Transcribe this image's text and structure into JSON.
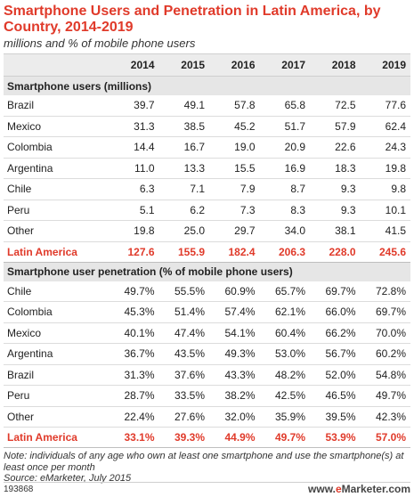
{
  "chart_data": {
    "type": "table",
    "title": "Smartphone Users and Penetration in Latin America, by Country, 2014-2019",
    "subtitle": "millions and % of mobile phone users",
    "columns": [
      "2014",
      "2015",
      "2016",
      "2017",
      "2018",
      "2019"
    ],
    "sections": [
      {
        "heading": "Smartphone users (millions)",
        "rows": [
          {
            "label": "Brazil",
            "values": [
              "39.7",
              "49.1",
              "57.8",
              "65.8",
              "72.5",
              "77.6"
            ]
          },
          {
            "label": "Mexico",
            "values": [
              "31.3",
              "38.5",
              "45.2",
              "51.7",
              "57.9",
              "62.4"
            ]
          },
          {
            "label": "Colombia",
            "values": [
              "14.4",
              "16.7",
              "19.0",
              "20.9",
              "22.6",
              "24.3"
            ]
          },
          {
            "label": "Argentina",
            "values": [
              "11.0",
              "13.3",
              "15.5",
              "16.9",
              "18.3",
              "19.8"
            ]
          },
          {
            "label": "Chile",
            "values": [
              "6.3",
              "7.1",
              "7.9",
              "8.7",
              "9.3",
              "9.8"
            ]
          },
          {
            "label": "Peru",
            "values": [
              "5.1",
              "6.2",
              "7.3",
              "8.3",
              "9.3",
              "10.1"
            ]
          },
          {
            "label": "Other",
            "values": [
              "19.8",
              "25.0",
              "29.7",
              "34.0",
              "38.1",
              "41.5"
            ]
          }
        ],
        "total": {
          "label": "Latin America",
          "values": [
            "127.6",
            "155.9",
            "182.4",
            "206.3",
            "228.0",
            "245.6"
          ]
        }
      },
      {
        "heading": "Smartphone user penetration (% of mobile phone users)",
        "rows": [
          {
            "label": "Chile",
            "values": [
              "49.7%",
              "55.5%",
              "60.9%",
              "65.7%",
              "69.7%",
              "72.8%"
            ]
          },
          {
            "label": "Colombia",
            "values": [
              "45.3%",
              "51.4%",
              "57.4%",
              "62.1%",
              "66.0%",
              "69.7%"
            ]
          },
          {
            "label": "Mexico",
            "values": [
              "40.1%",
              "47.4%",
              "54.1%",
              "60.4%",
              "66.2%",
              "70.0%"
            ]
          },
          {
            "label": "Argentina",
            "values": [
              "36.7%",
              "43.5%",
              "49.3%",
              "53.0%",
              "56.7%",
              "60.2%"
            ]
          },
          {
            "label": "Brazil",
            "values": [
              "31.3%",
              "37.6%",
              "43.3%",
              "48.2%",
              "52.0%",
              "54.8%"
            ]
          },
          {
            "label": "Peru",
            "values": [
              "28.7%",
              "33.5%",
              "38.2%",
              "42.5%",
              "46.5%",
              "49.7%"
            ]
          },
          {
            "label": "Other",
            "values": [
              "22.4%",
              "27.6%",
              "32.0%",
              "35.9%",
              "39.5%",
              "42.3%"
            ]
          }
        ],
        "total": {
          "label": "Latin America",
          "values": [
            "33.1%",
            "39.3%",
            "44.9%",
            "49.7%",
            "53.9%",
            "57.0%"
          ]
        }
      }
    ],
    "note": "Note: individuals of any age who own at least one smartphone and use the smartphone(s) at least once per month",
    "source": "Source: eMarketer, July 2015"
  },
  "footer": {
    "chart_id": "193868",
    "brand_prefix": "www.",
    "brand_e": "e",
    "brand_suffix": "Marketer.com"
  },
  "colors": {
    "accent": "#e03a2a",
    "section_bg": "#e6e6e6",
    "header_bg": "#ececec"
  }
}
